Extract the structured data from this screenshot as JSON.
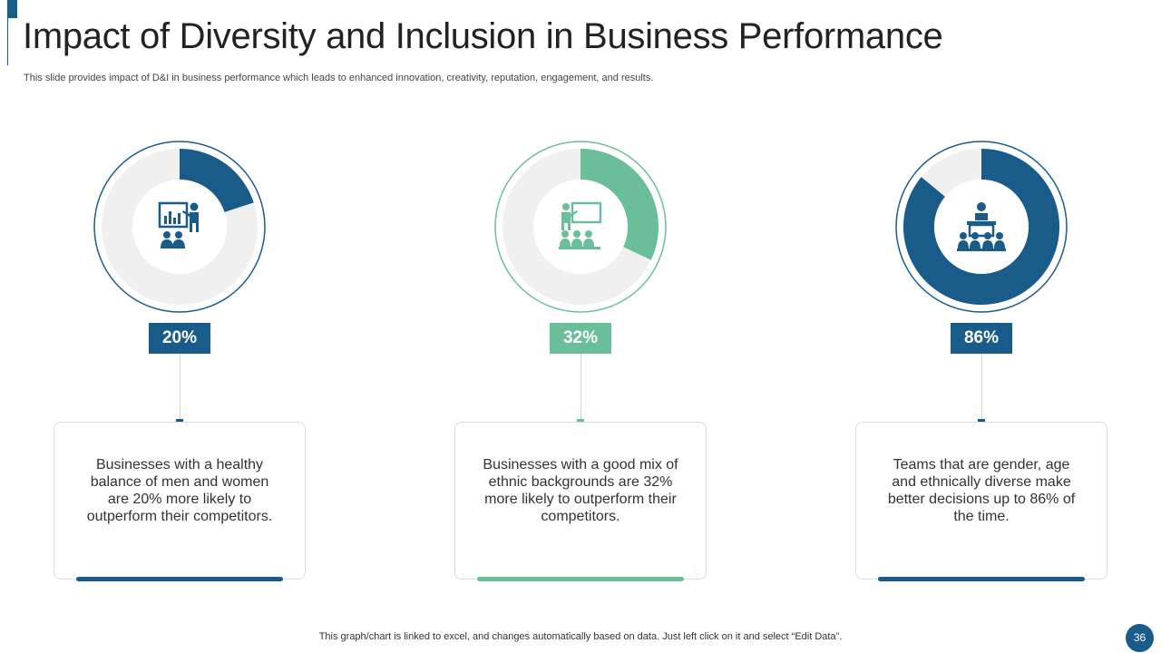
{
  "slide": {
    "title": "Impact of Diversity and Inclusion in Business Performance",
    "subtitle": "This slide provides impact of D&I in business performance which leads to enhanced innovation, creativity, reputation, engagement, and results.",
    "footer_note": "This graph/chart is linked to excel,  and changes automatically based on data. Just left click on it and select “Edit Data”.",
    "page_number": "36"
  },
  "colors": {
    "navy": "#1a5c89",
    "green": "#6abf9a",
    "track": "#f0f0f0"
  },
  "chart_data": [
    {
      "type": "pie",
      "values": [
        20,
        80
      ],
      "label": "20%",
      "color": "#1a5c89",
      "icon": "presentation-audience-icon",
      "description": "Businesses with a healthy balance of men and women are 20% more likely to outperform their competitors."
    },
    {
      "type": "pie",
      "values": [
        32,
        68
      ],
      "label": "32%",
      "color": "#6abf9a",
      "icon": "teacher-classroom-icon",
      "description": "Businesses with a good mix of ethnic backgrounds are 32% more likely to outperform their competitors."
    },
    {
      "type": "pie",
      "values": [
        86,
        14
      ],
      "label": "86%",
      "color": "#1a5c89",
      "icon": "speaker-podium-icon",
      "description": "Teams that are gender, age and ethnically  diverse make better decisions up to 86% of the time."
    }
  ]
}
